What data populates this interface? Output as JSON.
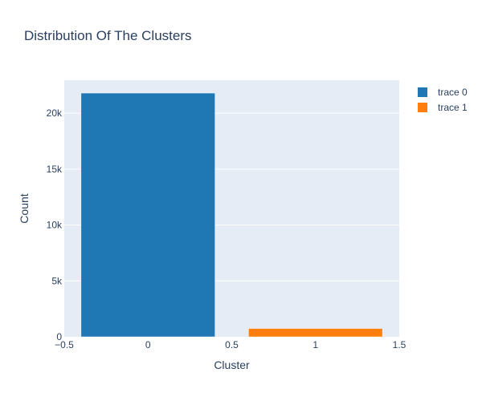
{
  "chart_data": {
    "type": "bar",
    "title": "Distribution Of The Clusters",
    "xlabel": "Cluster",
    "ylabel": "Count",
    "xlim": [
      -0.5,
      1.5
    ],
    "ylim": [
      0,
      22950
    ],
    "x_ticks": [
      {
        "value": -0.5,
        "label": "−0.5"
      },
      {
        "value": 0,
        "label": "0"
      },
      {
        "value": 0.5,
        "label": "0.5"
      },
      {
        "value": 1,
        "label": "1"
      },
      {
        "value": 1.5,
        "label": "1.5"
      }
    ],
    "y_ticks": [
      {
        "value": 0,
        "label": "0"
      },
      {
        "value": 5000,
        "label": "5k"
      },
      {
        "value": 10000,
        "label": "10k"
      },
      {
        "value": 15000,
        "label": "15k"
      },
      {
        "value": 20000,
        "label": "20k"
      }
    ],
    "bar_width": 0.8,
    "grid": true,
    "legend_position": "top-right",
    "plot_background": "#e5ecf6",
    "series": [
      {
        "name": "trace 0",
        "x": [
          0
        ],
        "values": [
          21800
        ],
        "color": "#1f77b4"
      },
      {
        "name": "trace 1",
        "x": [
          1
        ],
        "values": [
          750
        ],
        "color": "#ff7f0e"
      }
    ]
  }
}
